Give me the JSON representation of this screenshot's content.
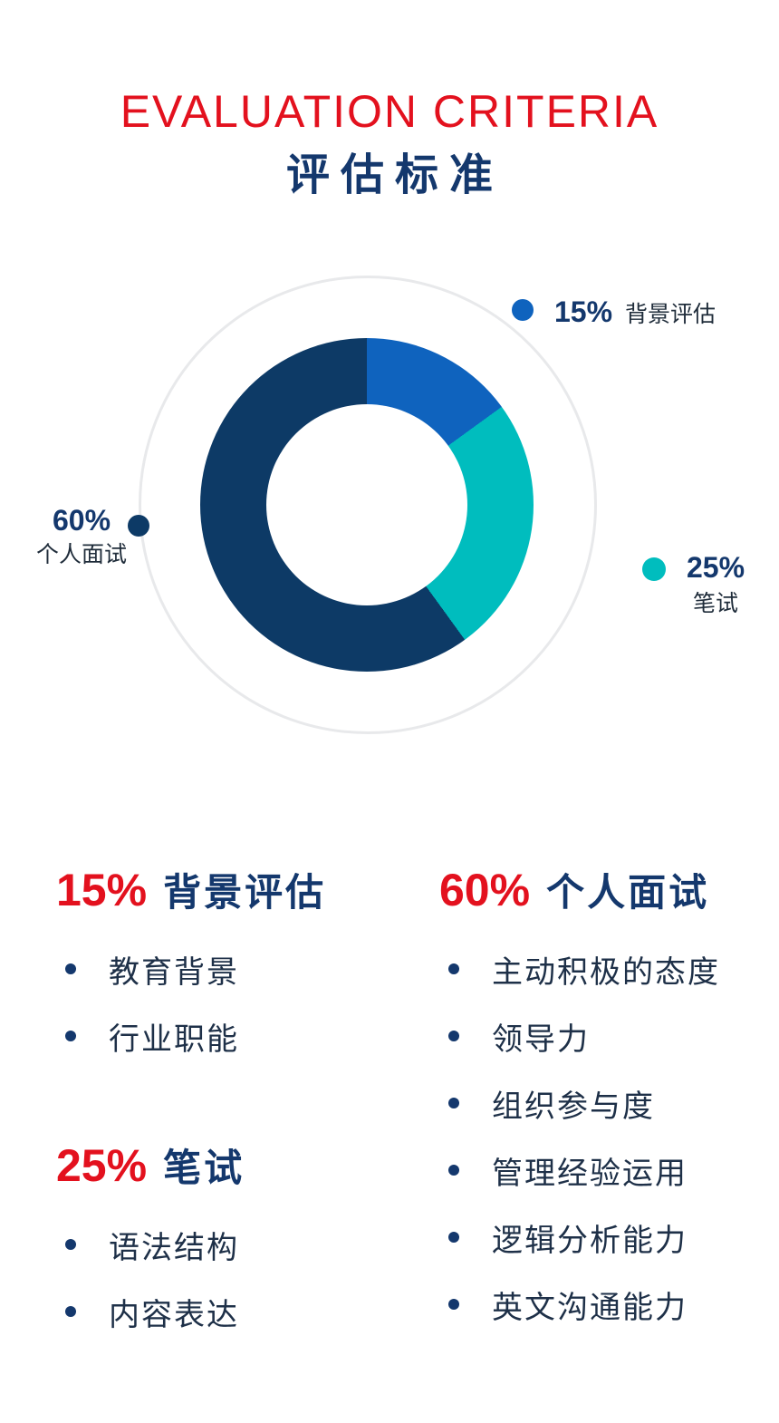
{
  "header": {
    "title": "EVALUATION CRITERIA",
    "subtitle": "评估标准"
  },
  "colors": {
    "accent_red": "#E3111E",
    "navy": "#14386D",
    "segment_blue": "#0F63BE",
    "segment_teal": "#00BDBE",
    "segment_navy": "#0D3A66",
    "body_text": "#1E3048",
    "ring_gray": "#E8E9EB"
  },
  "chart_data": {
    "type": "pie",
    "subtype": "donut",
    "title": "评估标准 Evaluation Criteria",
    "categories": [
      "背景评估",
      "笔试",
      "个人面试"
    ],
    "values": [
      15,
      25,
      60
    ],
    "segments": [
      {
        "label": "背景评估",
        "value": 15,
        "color": "#0F63BE"
      },
      {
        "label": "笔试",
        "value": 25,
        "color": "#00BDBE"
      },
      {
        "label": "个人面试",
        "value": 60,
        "color": "#0D3A66"
      }
    ],
    "start_angle_deg": 0,
    "direction": "clockwise",
    "inner_radius_ratio": 0.6,
    "legend_position": "around-chart"
  },
  "legend": {
    "background": {
      "pct": "15%",
      "label": "背景评估"
    },
    "written": {
      "pct": "25%",
      "label": "笔试"
    },
    "interview": {
      "pct": "60%",
      "label": "个人面试"
    }
  },
  "sections": [
    {
      "pct": "15%",
      "title": "背景评估",
      "items": [
        "教育背景",
        "行业职能"
      ]
    },
    {
      "pct": "25%",
      "title": "笔试",
      "items": [
        "语法结构",
        "内容表达"
      ]
    },
    {
      "pct": "60%",
      "title": "个人面试",
      "items": [
        "主动积极的态度",
        "领导力",
        "组织参与度",
        "管理经验运用",
        "逻辑分析能力",
        "英文沟通能力"
      ]
    }
  ]
}
